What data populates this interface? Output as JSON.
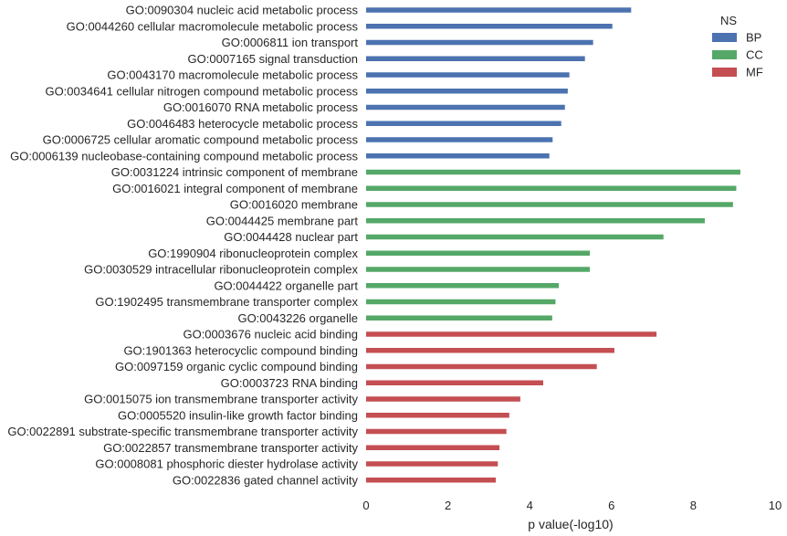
{
  "chart_data": {
    "type": "bar",
    "orientation": "horizontal",
    "xlabel": "p value(-log10)",
    "ylabel": "",
    "xlim": [
      0,
      10
    ],
    "xticks": [
      0,
      2,
      4,
      6,
      8,
      10
    ],
    "grid": false,
    "legend": {
      "title": "NS",
      "placement": "top-right",
      "entries": [
        {
          "name": "BP",
          "color": "#4c72b0"
        },
        {
          "name": "CC",
          "color": "#55a868"
        },
        {
          "name": "MF",
          "color": "#c44e52"
        }
      ]
    },
    "categories": [
      "GO:0090304 nucleic acid metabolic process",
      "GO:0044260 cellular macromolecule metabolic process",
      "GO:0006811 ion transport",
      "GO:0007165 signal transduction",
      "GO:0043170 macromolecule metabolic process",
      "GO:0034641 cellular nitrogen compound metabolic process",
      "GO:0016070 RNA metabolic process",
      "GO:0046483 heterocycle metabolic process",
      "GO:0006725 cellular aromatic compound metabolic process",
      "GO:0006139 nucleobase-containing compound metabolic process",
      "GO:0031224 intrinsic component of membrane",
      "GO:0016021 integral component of membrane",
      "GO:0016020 membrane",
      "GO:0044425 membrane part",
      "GO:0044428 nuclear part",
      "GO:1990904 ribonucleoprotein complex",
      "GO:0030529 intracellular ribonucleoprotein complex",
      "GO:0044422 organelle part",
      "GO:1902495 transmembrane transporter complex",
      "GO:0043226 organelle",
      "GO:0003676 nucleic acid binding",
      "GO:1901363 heterocyclic compound binding",
      "GO:0097159 organic cyclic compound binding",
      "GO:0003723 RNA binding",
      "GO:0015075 ion transmembrane transporter activity",
      "GO:0005520 insulin-like growth factor binding",
      "GO:0022891 substrate-specific transmembrane transporter activity",
      "GO:0022857 transmembrane transporter activity",
      "GO:0008081 phosphoric diester hydrolase activity",
      "GO:0022836 gated channel activity"
    ],
    "groups": [
      "BP",
      "BP",
      "BP",
      "BP",
      "BP",
      "BP",
      "BP",
      "BP",
      "BP",
      "BP",
      "CC",
      "CC",
      "CC",
      "CC",
      "CC",
      "CC",
      "CC",
      "CC",
      "CC",
      "CC",
      "MF",
      "MF",
      "MF",
      "MF",
      "MF",
      "MF",
      "MF",
      "MF",
      "MF",
      "MF"
    ],
    "values": [
      6.48,
      6.02,
      5.55,
      5.35,
      4.97,
      4.93,
      4.86,
      4.77,
      4.56,
      4.48,
      9.15,
      9.05,
      8.97,
      8.28,
      7.27,
      5.47,
      5.47,
      4.71,
      4.63,
      4.55,
      7.1,
      6.07,
      5.64,
      4.33,
      3.77,
      3.5,
      3.43,
      3.26,
      3.22,
      3.17
    ]
  }
}
